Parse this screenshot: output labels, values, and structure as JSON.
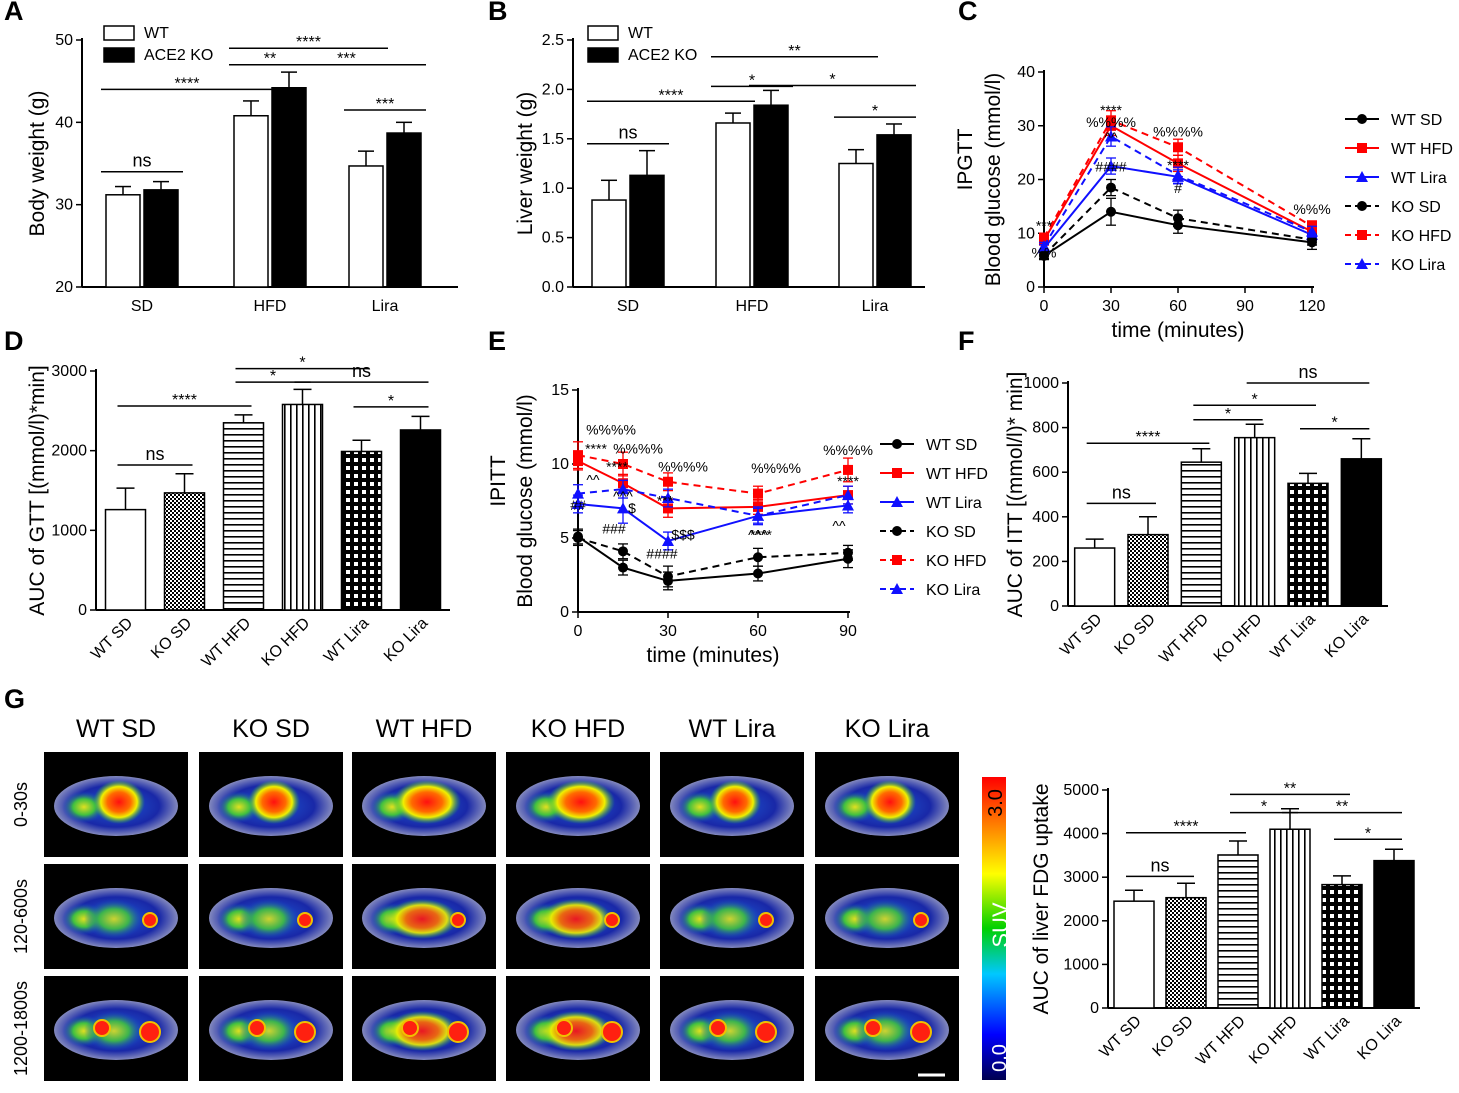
{
  "colors": {
    "black": "#000000",
    "red": "#ff0000",
    "blue": "#1010ff",
    "white": "#ffffff"
  },
  "chart_data": [
    {
      "panel": "A",
      "type": "bar",
      "ylabel": "Body weight (g)",
      "ylim": [
        20,
        50
      ],
      "yticks": [
        20,
        30,
        40,
        50
      ],
      "categories": [
        "SD",
        "HFD",
        "Lira"
      ],
      "legend": [
        "WT",
        "ACE2 KO"
      ],
      "series": [
        {
          "name": "WT",
          "fill": "white",
          "values": [
            31.2,
            40.8,
            34.7
          ],
          "errors": [
            1.0,
            1.8,
            1.8
          ]
        },
        {
          "name": "ACE2 KO",
          "fill": "black",
          "values": [
            31.8,
            44.2,
            38.7
          ],
          "errors": [
            1.0,
            1.9,
            1.3
          ]
        }
      ],
      "annotations": [
        {
          "label": "ns",
          "from": [
            0,
            0
          ],
          "to": [
            0,
            1
          ],
          "y": 34
        },
        {
          "label": "****",
          "from": [
            0,
            0
          ],
          "to": [
            1,
            0
          ],
          "y": 44
        },
        {
          "label": "**",
          "from": [
            1,
            0
          ],
          "to": [
            1,
            1
          ],
          "y": 47
        },
        {
          "label": "****",
          "from": [
            1,
            0
          ],
          "to": [
            2,
            0
          ],
          "y": 49
        },
        {
          "label": "***",
          "from": [
            1,
            1
          ],
          "to": [
            2,
            1
          ],
          "y": 47
        },
        {
          "label": "***",
          "from": [
            2,
            0
          ],
          "to": [
            2,
            1
          ],
          "y": 41.5
        }
      ]
    },
    {
      "panel": "B",
      "type": "bar",
      "ylabel": "Liver weight (g)",
      "ylim": [
        0,
        2.5
      ],
      "yticks": [
        "0.0",
        "0.5",
        "1.0",
        "1.5",
        "2.0",
        "2.5"
      ],
      "categories": [
        "SD",
        "HFD",
        "Lira"
      ],
      "legend": [
        "WT",
        "ACE2 KO"
      ],
      "series": [
        {
          "name": "WT",
          "fill": "white",
          "values": [
            0.88,
            1.66,
            1.25
          ],
          "errors": [
            0.2,
            0.1,
            0.14
          ]
        },
        {
          "name": "ACE2 KO",
          "fill": "black",
          "values": [
            1.13,
            1.84,
            1.54
          ],
          "errors": [
            0.25,
            0.15,
            0.11
          ]
        }
      ],
      "annotations": [
        {
          "label": "ns",
          "from": [
            0,
            0
          ],
          "to": [
            0,
            1
          ],
          "y": 1.45
        },
        {
          "label": "****",
          "from": [
            0,
            0
          ],
          "to": [
            1,
            0
          ],
          "y": 1.88
        },
        {
          "label": "*",
          "from": [
            1,
            0
          ],
          "to": [
            1,
            1
          ],
          "y": 2.03
        },
        {
          "label": "**",
          "from": [
            1,
            0
          ],
          "to": [
            2,
            0
          ],
          "y": 2.33
        },
        {
          "label": "*",
          "from": [
            1,
            1
          ],
          "to": [
            2,
            1
          ],
          "y": 2.04
        },
        {
          "label": "*",
          "from": [
            2,
            0
          ],
          "to": [
            2,
            1
          ],
          "y": 1.72
        }
      ]
    },
    {
      "panel": "C",
      "type": "line",
      "ylabel": "Blood glucose (mmol/l)",
      "axis_title": "IPGTT",
      "xlabel": "time (minutes)",
      "x": [
        0,
        30,
        60,
        120
      ],
      "xticks": [
        0,
        30,
        60,
        90,
        120
      ],
      "xlim": [
        0,
        120
      ],
      "ylim": [
        0,
        40
      ],
      "yticks": [
        0,
        10,
        20,
        30,
        40
      ],
      "series": [
        {
          "name": "WT SD",
          "color": "black",
          "dash": false,
          "marker": "circle",
          "values": [
            5.8,
            14,
            11.5,
            8.3
          ],
          "errors": [
            0.7,
            2.5,
            1.5,
            1.3
          ]
        },
        {
          "name": "WT HFD",
          "color": "red",
          "dash": false,
          "marker": "square",
          "values": [
            8.7,
            30,
            23,
            10.3
          ],
          "errors": [
            0.9,
            1.8,
            1.5,
            1
          ]
        },
        {
          "name": "WT Lira",
          "color": "blue",
          "dash": false,
          "marker": "triangle",
          "values": [
            7.2,
            22.5,
            20.5,
            9.7
          ],
          "errors": [
            0.7,
            1.5,
            1.3,
            1
          ]
        },
        {
          "name": "KO SD",
          "color": "black",
          "dash": true,
          "marker": "circle",
          "values": [
            5.9,
            18.5,
            12.8,
            8.8
          ],
          "errors": [
            0.6,
            1.5,
            1.5,
            1
          ]
        },
        {
          "name": "KO HFD",
          "color": "red",
          "dash": true,
          "marker": "square",
          "values": [
            9.2,
            31,
            26,
            11.3
          ],
          "errors": [
            0.8,
            1.8,
            1.5,
            1
          ]
        },
        {
          "name": "KO Lira",
          "color": "blue",
          "dash": true,
          "marker": "triangle",
          "values": [
            7.6,
            28,
            20.8,
            10.3
          ],
          "errors": [
            0.7,
            1.8,
            1.5,
            1
          ]
        }
      ],
      "annotations": [
        {
          "label": "****",
          "x": 30,
          "y": 32
        },
        {
          "label": "%%%%",
          "x": 30,
          "y": 29.8
        },
        {
          "label": "%%%%",
          "x": 60,
          "y": 28
        },
        {
          "label": "^^",
          "x": 30,
          "y": 27
        },
        {
          "label": "####",
          "x": 30,
          "y": 21.5
        },
        {
          "label": "****",
          "x": 60,
          "y": 21.8
        },
        {
          "label": "#",
          "x": 60,
          "y": 17.5
        },
        {
          "label": "%%%",
          "x": 120,
          "y": 13.6
        },
        {
          "label": "***",
          "x": 0,
          "y": 10.5
        },
        {
          "label": "%%",
          "x": 0,
          "y": 5.5
        }
      ]
    },
    {
      "panel": "D",
      "type": "bar",
      "ylabel": "AUC of GTT [(mmol/l)*min]",
      "ylim": [
        0,
        3000
      ],
      "yticks": [
        0,
        1000,
        2000,
        3000
      ],
      "categories": [
        "WT SD",
        "KO SD",
        "WT HFD",
        "KO HFD",
        "WT Lira",
        "KO Lira"
      ],
      "patterns": [
        "white",
        "dots",
        "hlines",
        "vlines",
        "grid",
        "black"
      ],
      "values": [
        1260,
        1470,
        2350,
        2580,
        1990,
        2260
      ],
      "errors": [
        270,
        240,
        100,
        190,
        140,
        170
      ],
      "annotations": [
        {
          "label": "ns",
          "from": 0,
          "to": 1,
          "y": 1820
        },
        {
          "label": "****",
          "from": 0,
          "to": 2,
          "y": 2560
        },
        {
          "label": "*",
          "from": 2,
          "to": 3,
          "y": 2860
        },
        {
          "label": "*",
          "from": 2,
          "to": 4,
          "y": 3030
        },
        {
          "label": "ns",
          "from": 3,
          "to": 5,
          "y": 2860
        },
        {
          "label": "*",
          "from": 4,
          "to": 5,
          "y": 2550
        }
      ]
    },
    {
      "panel": "E",
      "type": "line",
      "ylabel": "Blood glucose (mmol/l)",
      "axis_title": "IPITT",
      "xlabel": "time (minutes)",
      "x": [
        0,
        15,
        30,
        60,
        90
      ],
      "xticks": [
        0,
        30,
        60,
        90
      ],
      "xlim": [
        0,
        90
      ],
      "ylim": [
        0,
        15
      ],
      "yticks": [
        0,
        5,
        10,
        15
      ],
      "series": [
        {
          "name": "WT SD",
          "color": "black",
          "dash": false,
          "marker": "circle",
          "values": [
            5.1,
            3.0,
            2.1,
            2.6,
            3.6
          ],
          "errors": [
            0.5,
            0.5,
            0.6,
            0.5,
            0.6
          ]
        },
        {
          "name": "WT HFD",
          "color": "red",
          "dash": false,
          "marker": "square",
          "values": [
            10.2,
            8.7,
            7.0,
            7.1,
            7.9
          ],
          "errors": [
            0.6,
            0.6,
            0.6,
            0.5,
            0.6
          ]
        },
        {
          "name": "WT Lira",
          "color": "blue",
          "dash": false,
          "marker": "triangle",
          "values": [
            7.3,
            7.0,
            4.8,
            6.5,
            7.2
          ],
          "errors": [
            0.6,
            1.0,
            0.6,
            0.5,
            0.5
          ]
        },
        {
          "name": "KO SD",
          "color": "black",
          "dash": true,
          "marker": "circle",
          "values": [
            5.0,
            4.1,
            2.4,
            3.7,
            4.0
          ],
          "errors": [
            0.5,
            0.5,
            0.7,
            0.6,
            0.5
          ]
        },
        {
          "name": "KO HFD",
          "color": "red",
          "dash": true,
          "marker": "square",
          "values": [
            10.6,
            10.0,
            8.8,
            8.0,
            9.6
          ],
          "errors": [
            0.9,
            0.8,
            0.6,
            0.5,
            0.8
          ]
        },
        {
          "name": "KO Lira",
          "color": "blue",
          "dash": true,
          "marker": "triangle",
          "values": [
            8.0,
            8.3,
            7.7,
            6.5,
            7.9
          ],
          "errors": [
            0.6,
            0.6,
            0.6,
            0.6,
            0.6
          ]
        }
      ],
      "annotations": [
        {
          "label": "%%%%",
          "x": 11,
          "y": 12.0
        },
        {
          "label": "****",
          "x": 6,
          "y": 10.7
        },
        {
          "label": "%%%%",
          "x": 20,
          "y": 10.7
        },
        {
          "label": "****",
          "x": 13,
          "y": 9.5
        },
        {
          "label": "^^",
          "x": 5,
          "y": 8.6
        },
        {
          "label": "%%%%",
          "x": 35,
          "y": 9.5
        },
        {
          "label": "%%%%",
          "x": 66,
          "y": 9.4
        },
        {
          "label": "%%%%",
          "x": 90,
          "y": 10.6
        },
        {
          "label": "^^^",
          "x": 15,
          "y": 7.5
        },
        {
          "label": "***",
          "x": 29,
          "y": 7.2
        },
        {
          "label": "****",
          "x": 61,
          "y": 4.9
        },
        {
          "label": "****",
          "x": 90,
          "y": 8.5
        },
        {
          "label": "##",
          "x": 0,
          "y": 6.9
        },
        {
          "label": "$",
          "x": 18,
          "y": 6.7
        },
        {
          "label": "###",
          "x": 12,
          "y": 5.3
        },
        {
          "label": "$$$",
          "x": 35,
          "y": 4.9
        },
        {
          "label": "^^^",
          "x": 60,
          "y": 4.9
        },
        {
          "label": "^^",
          "x": 87,
          "y": 5.5
        },
        {
          "label": "####",
          "x": 28,
          "y": 3.6
        }
      ]
    },
    {
      "panel": "F",
      "type": "bar",
      "ylabel": "AUC of ITT [(mmol/l)* min]",
      "ylim": [
        0,
        1000
      ],
      "yticks": [
        0,
        200,
        400,
        600,
        800,
        1000
      ],
      "categories": [
        "WT SD",
        "KO SD",
        "WT HFD",
        "KO HFD",
        "WT Lira",
        "KO Lira"
      ],
      "patterns": [
        "white",
        "dots",
        "hlines",
        "vlines",
        "grid",
        "black"
      ],
      "values": [
        260,
        320,
        645,
        755,
        550,
        660
      ],
      "errors": [
        40,
        80,
        60,
        60,
        45,
        90
      ],
      "annotations": [
        {
          "label": "ns",
          "from": 0,
          "to": 1,
          "y": 460
        },
        {
          "label": "****",
          "from": 0,
          "to": 2,
          "y": 730
        },
        {
          "label": "*",
          "from": 2,
          "to": 3,
          "y": 835
        },
        {
          "label": "*",
          "from": 2,
          "to": 4,
          "y": 900
        },
        {
          "label": "ns",
          "from": 3,
          "to": 5,
          "y": 1000
        },
        {
          "label": "*",
          "from": 4,
          "to": 5,
          "y": 795
        }
      ]
    },
    {
      "panel": "G",
      "type": "bar",
      "ylabel": "AUC of liver FDG uptake",
      "ylim": [
        0,
        5000
      ],
      "yticks": [
        0,
        1000,
        2000,
        3000,
        4000,
        5000
      ],
      "categories": [
        "WT SD",
        "KO SD",
        "WT HFD",
        "KO HFD",
        "WT Lira",
        "KO Lira"
      ],
      "patterns": [
        "white",
        "dots",
        "hlines",
        "vlines",
        "grid",
        "black"
      ],
      "values": [
        2450,
        2530,
        3510,
        4100,
        2830,
        3380
      ],
      "errors": [
        250,
        330,
        320,
        470,
        200,
        260
      ],
      "annotations": [
        {
          "label": "ns",
          "from": 0,
          "to": 1,
          "y": 3020
        },
        {
          "label": "****",
          "from": 0,
          "to": 2,
          "y": 4020
        },
        {
          "label": "*",
          "from": 2,
          "to": 3,
          "y": 4480
        },
        {
          "label": "**",
          "from": 2,
          "to": 4,
          "y": 4900
        },
        {
          "label": "**",
          "from": 3,
          "to": 5,
          "y": 4480
        },
        {
          "label": "*",
          "from": 4,
          "to": 5,
          "y": 3870
        }
      ]
    }
  ],
  "pet_images": {
    "columns": [
      "WT SD",
      "KO SD",
      "WT HFD",
      "KO HFD",
      "WT Lira",
      "KO Lira"
    ],
    "rows": [
      "0-30s",
      "120-600s",
      "1200-1800s"
    ],
    "colorbar": {
      "label": "SUV",
      "max": "3.0",
      "min": "0.0"
    }
  }
}
